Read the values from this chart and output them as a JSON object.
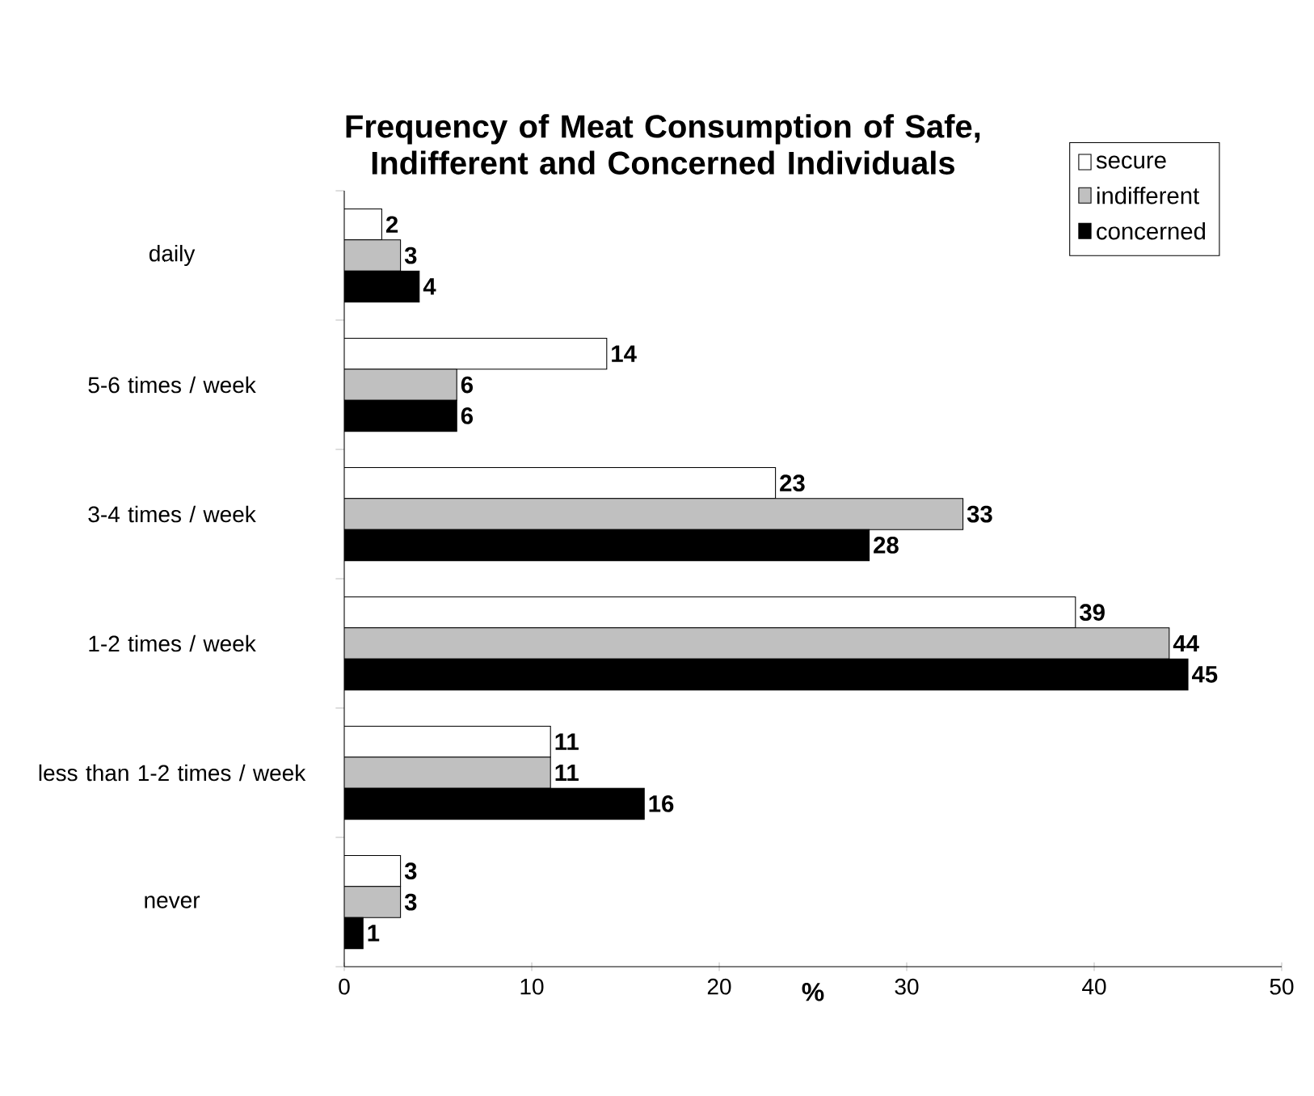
{
  "chart_data": {
    "type": "bar",
    "orientation": "horizontal",
    "title": "Frequency of Meat Consumption of Safe, Indifferent and Concerned Individuals",
    "xlabel": "%",
    "categories": [
      "daily",
      "5-6 times / week",
      "3-4 times / week",
      "1-2 times / week",
      "less than 1-2 times / week",
      "never"
    ],
    "series": [
      {
        "name": "secure",
        "color": "#ffffff",
        "values": [
          2,
          14,
          23,
          39,
          11,
          3
        ]
      },
      {
        "name": "indifferent",
        "color": "#c0c0c0",
        "values": [
          3,
          6,
          33,
          44,
          11,
          3
        ]
      },
      {
        "name": "concerned",
        "color": "#000000",
        "values": [
          4,
          6,
          28,
          45,
          16,
          1
        ]
      }
    ],
    "xlim": [
      0,
      50
    ],
    "xticks": [
      0,
      10,
      20,
      30,
      40,
      50
    ],
    "data_labels": true,
    "legend": "top right",
    "grid": false
  }
}
